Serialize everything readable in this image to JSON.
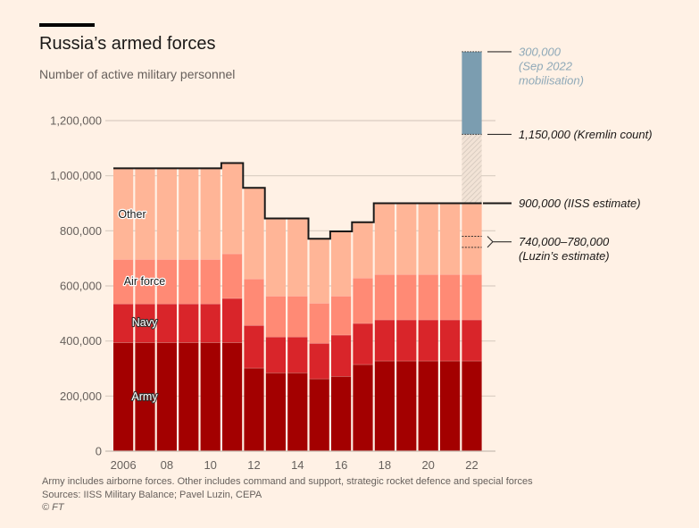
{
  "header": {
    "title": "Russia’s armed forces",
    "subtitle": "Number of active military personnel"
  },
  "footer": {
    "note": "Army includes airborne forces. Other includes command and support, strategic rocket defence and special forces",
    "sources": "Sources: IISS Military Balance; Pavel Luzin, CEPA",
    "copyright": "© FT"
  },
  "colors": {
    "background": "#fff1e5",
    "army": "#a30000",
    "navy": "#d9252a",
    "air_force": "#ff8a75",
    "other": "#ffb597",
    "mobilisation": "#7b9db0",
    "total_line": "#1a1817"
  },
  "chart_data": {
    "type": "bar",
    "stacked": true,
    "title": "Russia’s armed forces",
    "subtitle": "Number of active military personnel",
    "xlabel": "",
    "ylabel": "",
    "ylim": [
      0,
      1200000
    ],
    "grid": true,
    "categories": [
      "2006",
      "2007",
      "2008",
      "2009",
      "2010",
      "2011",
      "2012",
      "2013",
      "2014",
      "2015",
      "2016",
      "2017",
      "2018",
      "2019",
      "2020",
      "2021",
      "2022"
    ],
    "x_tick_labels": [
      "2006",
      "",
      "08",
      "",
      "10",
      "",
      "12",
      "",
      "14",
      "",
      "16",
      "",
      "18",
      "",
      "20",
      "",
      "22"
    ],
    "y_ticks": [
      0,
      200000,
      400000,
      600000,
      800000,
      1000000,
      1200000
    ],
    "y_tick_labels": [
      "0",
      "200,000",
      "400,000",
      "600,000",
      "800,000",
      "1,000,000",
      "1,200,000"
    ],
    "series": [
      {
        "name": "Army",
        "color_key": "army",
        "values": [
          395000,
          395000,
          395000,
          395000,
          395000,
          395000,
          302000,
          285000,
          285000,
          263000,
          272000,
          315000,
          328000,
          328000,
          328000,
          328000,
          328000
        ]
      },
      {
        "name": "Navy",
        "color_key": "navy",
        "values": [
          140000,
          140000,
          140000,
          140000,
          140000,
          160000,
          155000,
          130000,
          130000,
          129000,
          150000,
          149000,
          149000,
          149000,
          149000,
          149000,
          149000
        ]
      },
      {
        "name": "Air force",
        "color_key": "air_force",
        "values": [
          162000,
          162000,
          162000,
          162000,
          162000,
          162000,
          169000,
          149000,
          149000,
          146000,
          142000,
          165000,
          165000,
          165000,
          165000,
          165000,
          165000
        ]
      },
      {
        "name": "Other",
        "color_key": "other",
        "values": [
          330000,
          330000,
          330000,
          330000,
          330000,
          329000,
          330000,
          281000,
          281000,
          233000,
          234000,
          202000,
          258000,
          258000,
          258000,
          258000,
          258000
        ]
      }
    ],
    "totals": [
      1027000,
      1027000,
      1027000,
      1027000,
      1027000,
      1046000,
      956000,
      845000,
      845000,
      771000,
      798000,
      831000,
      900000,
      900000,
      900000,
      900000,
      900000
    ],
    "series_labels": [
      "Other",
      "Air force",
      "Navy",
      "Army"
    ],
    "annotations": [
      {
        "text_lines": [
          "300,000",
          "(Sep 2022",
          "mobilisation)"
        ],
        "value": 1450000,
        "style": "blue"
      },
      {
        "text_lines": [
          "1,150,000 (Kremlin count)"
        ],
        "value": 1150000,
        "style": "dark"
      },
      {
        "text_lines": [
          "900,000 (IISS estimate)"
        ],
        "value": 900000,
        "style": "dark"
      },
      {
        "text_lines": [
          "740,000–780,000",
          "(Luzin’s estimate)"
        ],
        "range": [
          740000,
          780000
        ],
        "style": "dark"
      }
    ],
    "extras_2022": {
      "kremlin_count": 1150000,
      "mobilisation": 300000,
      "iiss_estimate": 900000,
      "luzin_range": [
        740000,
        780000
      ]
    }
  }
}
